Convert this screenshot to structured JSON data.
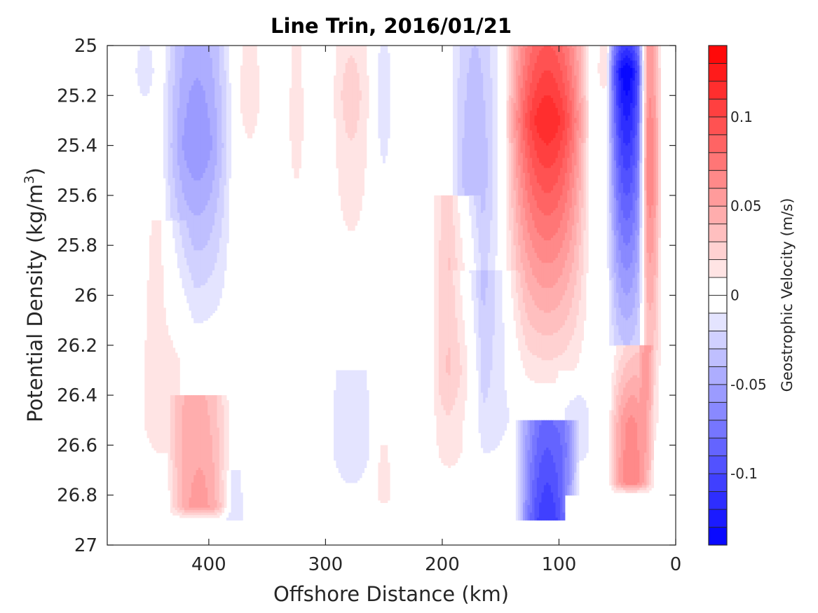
{
  "chart_data": {
    "type": "heatmap",
    "title": "Line Trin, 2016/01/21",
    "xlabel": "Offshore Distance (km)",
    "ylabel_main": "Potential Density (kg/m",
    "ylabel_sup": "3",
    "ylabel_close": ")",
    "colorbar_label": "Geostrophic Velocity (m/s)",
    "xlim": [
      487,
      0
    ],
    "ylim": [
      25,
      27
    ],
    "x_reversed": true,
    "y_reversed": true,
    "x_ticks": [
      {
        "value": 400,
        "label": "400"
      },
      {
        "value": 300,
        "label": "300"
      },
      {
        "value": 200,
        "label": "200"
      },
      {
        "value": 100,
        "label": "100"
      },
      {
        "value": 0,
        "label": "0"
      }
    ],
    "y_ticks": [
      {
        "value": 25,
        "label": "25"
      },
      {
        "value": 25.2,
        "label": "25.2"
      },
      {
        "value": 25.4,
        "label": "25.4"
      },
      {
        "value": 25.6,
        "label": "25.6"
      },
      {
        "value": 25.8,
        "label": "25.8"
      },
      {
        "value": 26,
        "label": "26"
      },
      {
        "value": 26.2,
        "label": "26.2"
      },
      {
        "value": 26.4,
        "label": "26.4"
      },
      {
        "value": 26.6,
        "label": "26.6"
      },
      {
        "value": 26.8,
        "label": "26.8"
      },
      {
        "value": 27,
        "label": "27"
      }
    ],
    "colorbar": {
      "vmin": -0.14,
      "vmax": 0.14,
      "step": 0.01,
      "ticks": [
        {
          "value": 0.1,
          "label": "0.1"
        },
        {
          "value": 0.05,
          "label": "0.05"
        },
        {
          "value": 0,
          "label": "0"
        },
        {
          "value": -0.05,
          "label": "-0.05"
        },
        {
          "value": -0.1,
          "label": "-0.1"
        }
      ],
      "colormap": "blue-white-red"
    },
    "data_extent": {
      "x_range": [
        465,
        10
      ],
      "sigma_max_offshore": 26.9,
      "sigma_max_nearshore": 26.8,
      "nearshore_cutoff_km": 95
    },
    "features": [
      {
        "x_center": 410,
        "x_halfwidth": 25,
        "sigma_top": 25.0,
        "sigma_bottom": 26.25,
        "peak_sigma": 25.4,
        "peak_velocity": -0.06
      },
      {
        "x_center": 455,
        "x_halfwidth": 10,
        "sigma_top": 25.0,
        "sigma_bottom": 25.4,
        "peak_sigma": 25.1,
        "peak_velocity": -0.015
      },
      {
        "x_center": 365,
        "x_halfwidth": 12,
        "sigma_top": 25.0,
        "sigma_bottom": 25.7,
        "peak_sigma": 25.2,
        "peak_velocity": 0.015
      },
      {
        "x_center": 325,
        "x_halfwidth": 8,
        "sigma_top": 25.0,
        "sigma_bottom": 26.0,
        "peak_sigma": 25.3,
        "peak_velocity": 0.015
      },
      {
        "x_center": 308,
        "x_halfwidth": 4,
        "sigma_top": 25.0,
        "sigma_bottom": 25.8,
        "peak_sigma": 25.2,
        "peak_velocity": -0.01
      },
      {
        "x_center": 278,
        "x_halfwidth": 15,
        "sigma_top": 25.0,
        "sigma_bottom": 26.1,
        "peak_sigma": 25.2,
        "peak_velocity": 0.025
      },
      {
        "x_center": 250,
        "x_halfwidth": 8,
        "sigma_top": 25.0,
        "sigma_bottom": 26.0,
        "peak_sigma": 25.2,
        "peak_velocity": -0.015
      },
      {
        "x_center": 172,
        "x_halfwidth": 18,
        "sigma_top": 25.0,
        "sigma_bottom": 26.6,
        "peak_sigma": 25.5,
        "peak_velocity": -0.04
      },
      {
        "x_center": 110,
        "x_halfwidth": 30,
        "sigma_top": 25.0,
        "sigma_bottom": 26.45,
        "peak_sigma": 25.3,
        "peak_velocity": 0.12
      },
      {
        "x_center": 42,
        "x_halfwidth": 14,
        "sigma_top": 25.0,
        "sigma_bottom": 26.5,
        "peak_sigma": 25.1,
        "peak_velocity": -0.14
      },
      {
        "x_center": 62,
        "x_halfwidth": 6,
        "sigma_top": 25.0,
        "sigma_bottom": 25.3,
        "peak_sigma": 25.1,
        "peak_velocity": 0.015
      },
      {
        "x_center": 440,
        "x_halfwidth": 22,
        "sigma_top": 25.7,
        "sigma_bottom": 26.9,
        "peak_sigma": 26.5,
        "peak_velocity": 0.015
      },
      {
        "x_center": 408,
        "x_halfwidth": 22,
        "sigma_top": 26.4,
        "sigma_bottom": 26.9,
        "peak_sigma": 26.85,
        "peak_velocity": 0.055
      },
      {
        "x_center": 378,
        "x_halfwidth": 10,
        "sigma_top": 26.7,
        "sigma_bottom": 26.9,
        "peak_sigma": 26.9,
        "peak_velocity": -0.015
      },
      {
        "x_center": 278,
        "x_halfwidth": 18,
        "sigma_top": 26.3,
        "sigma_bottom": 26.9,
        "peak_sigma": 26.6,
        "peak_velocity": -0.02
      },
      {
        "x_center": 250,
        "x_halfwidth": 7,
        "sigma_top": 26.6,
        "sigma_bottom": 26.9,
        "peak_sigma": 26.8,
        "peak_velocity": 0.015
      },
      {
        "x_center": 188,
        "x_halfwidth": 18,
        "sigma_top": 25.6,
        "sigma_bottom": 26.9,
        "peak_sigma": 26.3,
        "peak_velocity": 0.04
      },
      {
        "x_center": 165,
        "x_halfwidth": 30,
        "sigma_top": 25.9,
        "sigma_bottom": 26.9,
        "peak_sigma": 26.5,
        "peak_velocity": -0.015
      },
      {
        "x_center": 110,
        "x_halfwidth": 22,
        "sigma_top": 26.5,
        "sigma_bottom": 26.9,
        "peak_sigma": 26.9,
        "peak_velocity": -0.11
      },
      {
        "x_center": 85,
        "x_halfwidth": 15,
        "sigma_top": 26.3,
        "sigma_bottom": 26.8,
        "peak_sigma": 26.6,
        "peak_velocity": -0.015
      },
      {
        "x_center": 22,
        "x_halfwidth": 8,
        "sigma_top": 25.0,
        "sigma_bottom": 26.8,
        "peak_sigma": 25.5,
        "peak_velocity": 0.07
      },
      {
        "x_center": 38,
        "x_halfwidth": 16,
        "sigma_top": 26.2,
        "sigma_bottom": 26.8,
        "peak_sigma": 26.75,
        "peak_velocity": 0.07
      }
    ]
  }
}
